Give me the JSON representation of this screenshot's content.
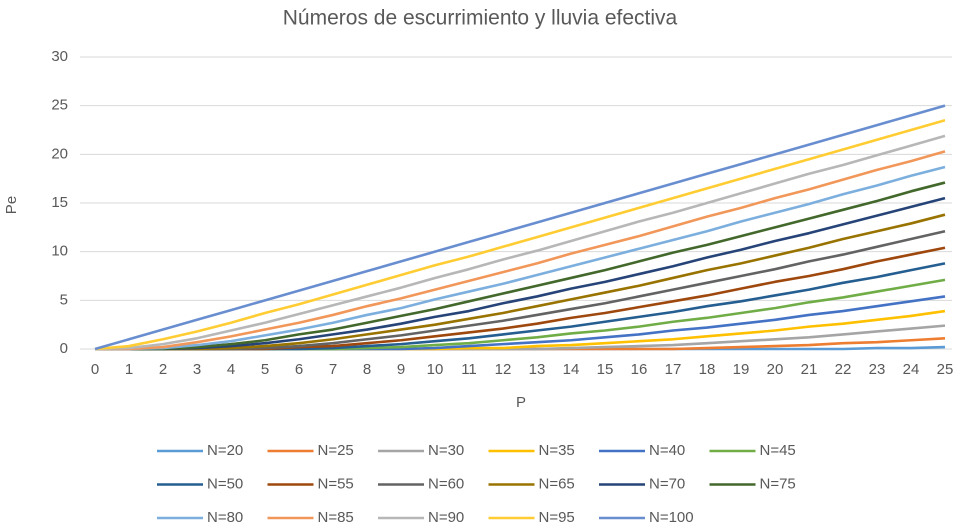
{
  "chart_data": {
    "type": "line",
    "title": "Números de escurrimiento y lluvia efectiva",
    "x_label": "P",
    "y_label": "Pe",
    "categories": [
      0,
      1,
      2,
      3,
      4,
      5,
      6,
      7,
      8,
      9,
      10,
      11,
      12,
      13,
      14,
      15,
      16,
      17,
      18,
      19,
      20,
      21,
      22,
      23,
      24,
      25
    ],
    "ylim": [
      0,
      30
    ],
    "yticks": [
      0,
      5,
      10,
      15,
      20,
      25,
      30
    ],
    "grid": true,
    "legend": "bottom",
    "series": [
      {
        "name": "N=20",
        "color": "#5b9bd5",
        "values": [
          0,
          0,
          0,
          0,
          0,
          0,
          0,
          0,
          0,
          0,
          0,
          0,
          0,
          0,
          0,
          0,
          0,
          0,
          0,
          0,
          0,
          0.0,
          0.0,
          0.1,
          0.1,
          0.2
        ]
      },
      {
        "name": "N=25",
        "color": "#ed7d31",
        "values": [
          0,
          0,
          0,
          0,
          0,
          0,
          0,
          0,
          0,
          0,
          0,
          0,
          0,
          0,
          0,
          0,
          0.0,
          0.0,
          0.1,
          0.2,
          0.3,
          0.4,
          0.6,
          0.7,
          0.9,
          1.1
        ]
      },
      {
        "name": "N=30",
        "color": "#a5a5a5",
        "values": [
          0,
          0,
          0,
          0,
          0,
          0,
          0,
          0,
          0,
          0,
          0,
          0,
          0.0,
          0.0,
          0.1,
          0.2,
          0.3,
          0.4,
          0.6,
          0.8,
          1.0,
          1.2,
          1.5,
          1.8,
          2.1,
          2.4
        ]
      },
      {
        "name": "N=35",
        "color": "#ffc000",
        "values": [
          0,
          0,
          0,
          0,
          0,
          0,
          0,
          0,
          0,
          0,
          0.0,
          0.1,
          0.1,
          0.3,
          0.4,
          0.6,
          0.8,
          1.0,
          1.3,
          1.6,
          1.9,
          2.3,
          2.6,
          3.0,
          3.4,
          3.9
        ]
      },
      {
        "name": "N=40",
        "color": "#4472c4",
        "values": [
          0,
          0,
          0,
          0,
          0,
          0,
          0,
          0,
          0.0,
          0.0,
          0.1,
          0.3,
          0.5,
          0.7,
          0.9,
          1.2,
          1.5,
          1.9,
          2.2,
          2.6,
          3.0,
          3.5,
          3.9,
          4.4,
          4.9,
          5.4
        ]
      },
      {
        "name": "N=45",
        "color": "#70ad47",
        "values": [
          0,
          0,
          0,
          0,
          0,
          0,
          0,
          0.0,
          0.1,
          0.2,
          0.4,
          0.6,
          0.9,
          1.2,
          1.6,
          1.9,
          2.3,
          2.8,
          3.2,
          3.7,
          4.2,
          4.8,
          5.3,
          5.9,
          6.5,
          7.1
        ]
      },
      {
        "name": "N=50",
        "color": "#255e91",
        "values": [
          0,
          0,
          0,
          0,
          0,
          0,
          0.0,
          0.1,
          0.3,
          0.5,
          0.8,
          1.1,
          1.5,
          1.9,
          2.3,
          2.8,
          3.3,
          3.8,
          4.4,
          4.9,
          5.5,
          6.1,
          6.8,
          7.4,
          8.1,
          8.8
        ]
      },
      {
        "name": "N=55",
        "color": "#9e480e",
        "values": [
          0,
          0,
          0,
          0,
          0,
          0.0,
          0.2,
          0.3,
          0.6,
          0.9,
          1.3,
          1.7,
          2.1,
          2.6,
          3.2,
          3.7,
          4.3,
          4.9,
          5.5,
          6.2,
          6.9,
          7.5,
          8.2,
          9.0,
          9.7,
          10.4
        ]
      },
      {
        "name": "N=60",
        "color": "#636363",
        "values": [
          0,
          0,
          0,
          0,
          0.0,
          0.1,
          0.3,
          0.6,
          1.0,
          1.4,
          1.9,
          2.4,
          2.9,
          3.5,
          4.1,
          4.7,
          5.4,
          6.1,
          6.8,
          7.5,
          8.2,
          9.0,
          9.7,
          10.5,
          11.3,
          12.1
        ]
      },
      {
        "name": "N=65",
        "color": "#997300",
        "values": [
          0,
          0,
          0,
          0.0,
          0.1,
          0.3,
          0.6,
          1.0,
          1.5,
          2.0,
          2.5,
          3.1,
          3.7,
          4.4,
          5.1,
          5.8,
          6.5,
          7.3,
          8.1,
          8.8,
          9.6,
          10.4,
          11.3,
          12.1,
          12.9,
          13.8
        ]
      },
      {
        "name": "N=70",
        "color": "#264478",
        "values": [
          0,
          0,
          0,
          0.1,
          0.3,
          0.6,
          1.0,
          1.5,
          2.0,
          2.6,
          3.3,
          3.9,
          4.7,
          5.4,
          6.2,
          6.9,
          7.7,
          8.5,
          9.4,
          10.2,
          11.1,
          11.9,
          12.8,
          13.7,
          14.6,
          15.5
        ]
      },
      {
        "name": "N=75",
        "color": "#43682b",
        "values": [
          0,
          0,
          0.0,
          0.2,
          0.5,
          0.9,
          1.5,
          2.0,
          2.7,
          3.4,
          4.1,
          4.9,
          5.7,
          6.5,
          7.3,
          8.1,
          9.0,
          9.9,
          10.7,
          11.6,
          12.5,
          13.4,
          14.3,
          15.2,
          16.2,
          17.1
        ]
      },
      {
        "name": "N=80",
        "color": "#7cafdd",
        "values": [
          0,
          0,
          0.1,
          0.4,
          0.8,
          1.4,
          2.0,
          2.7,
          3.5,
          4.2,
          5.1,
          5.9,
          6.7,
          7.6,
          8.5,
          9.4,
          10.3,
          11.2,
          12.1,
          13.1,
          14.0,
          14.9,
          15.9,
          16.8,
          17.8,
          18.7
        ]
      },
      {
        "name": "N=85",
        "color": "#f1975a",
        "values": [
          0,
          0.0,
          0.2,
          0.7,
          1.3,
          2.0,
          2.7,
          3.5,
          4.4,
          5.2,
          6.1,
          7.0,
          7.9,
          8.8,
          9.8,
          10.7,
          11.6,
          12.6,
          13.6,
          14.5,
          15.5,
          16.4,
          17.4,
          18.4,
          19.3,
          20.3
        ]
      },
      {
        "name": "N=90",
        "color": "#b7b7b7",
        "values": [
          0,
          0.1,
          0.5,
          1.1,
          1.9,
          2.7,
          3.6,
          4.5,
          5.4,
          6.3,
          7.3,
          8.2,
          9.2,
          10.1,
          11.1,
          12.1,
          13.1,
          14.0,
          15.0,
          16.0,
          17.0,
          18.0,
          18.9,
          19.9,
          20.9,
          21.9
        ]
      },
      {
        "name": "N=95",
        "color": "#ffcd33",
        "values": [
          0,
          0.3,
          1.0,
          1.8,
          2.7,
          3.7,
          4.6,
          5.6,
          6.6,
          7.6,
          8.6,
          9.5,
          10.5,
          11.5,
          12.5,
          13.5,
          14.5,
          15.5,
          16.5,
          17.5,
          18.5,
          19.5,
          20.5,
          21.5,
          22.5,
          23.5
        ]
      },
      {
        "name": "N=100",
        "color": "#698ed0",
        "values": [
          0,
          1,
          2,
          3,
          4,
          5,
          6,
          7,
          8,
          9,
          10,
          11,
          12,
          13,
          14,
          15,
          16,
          17,
          18,
          19,
          20,
          21,
          22,
          23,
          24,
          25
        ]
      }
    ]
  }
}
